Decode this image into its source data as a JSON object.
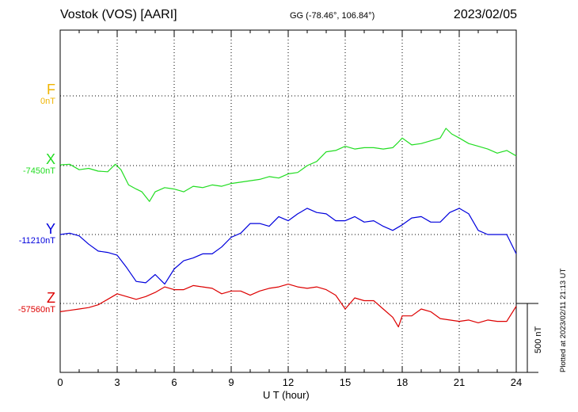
{
  "header": {
    "station": "Vostok (VOS)  [AARI]",
    "coords": "GG (-78.46°, 106.84°)",
    "date": "2023/02/05"
  },
  "plotted_note": "Plotted at 2023/02/11 21:13 UT",
  "chart_data": {
    "type": "line",
    "xlabel": "U T (hour)",
    "xlim": [
      0,
      24
    ],
    "xticks": [
      "0",
      "3",
      "6",
      "9",
      "12",
      "15",
      "18",
      "21",
      "24"
    ],
    "scale_bar": "500 nT",
    "grid": true,
    "series": [
      {
        "name": "F",
        "baseline_label": "0nT",
        "color": "#f0b400",
        "x": [],
        "values": []
      },
      {
        "name": "X",
        "baseline_label": "-7450nT",
        "color": "#22dd22",
        "x": [
          0,
          0.5,
          1,
          1.5,
          2,
          2.5,
          2.9,
          3.2,
          3.6,
          4,
          4.3,
          4.7,
          5,
          5.5,
          6,
          6.5,
          7,
          7.5,
          8,
          8.5,
          9,
          9.5,
          10,
          10.5,
          11,
          11.5,
          12,
          12.5,
          13,
          13.5,
          14,
          14.5,
          15,
          15.5,
          16,
          16.5,
          17,
          17.5,
          17.8,
          18,
          18.5,
          19,
          19.5,
          20,
          20.3,
          20.6,
          21,
          21.5,
          22,
          22.5,
          23,
          23.5,
          24
        ],
        "values": [
          -7445,
          -7440,
          -7480,
          -7470,
          -7490,
          -7495,
          -7440,
          -7480,
          -7590,
          -7620,
          -7640,
          -7710,
          -7640,
          -7610,
          -7620,
          -7640,
          -7600,
          -7610,
          -7590,
          -7600,
          -7580,
          -7570,
          -7560,
          -7550,
          -7530,
          -7540,
          -7510,
          -7500,
          -7450,
          -7420,
          -7350,
          -7340,
          -7310,
          -7330,
          -7320,
          -7320,
          -7330,
          -7320,
          -7280,
          -7250,
          -7300,
          -7290,
          -7270,
          -7250,
          -7180,
          -7220,
          -7250,
          -7290,
          -7310,
          -7330,
          -7360,
          -7340,
          -7380
        ]
      },
      {
        "name": "Y",
        "baseline_label": "-11210nT",
        "color": "#0000dd",
        "x": [
          0,
          0.5,
          1,
          1.5,
          2,
          2.5,
          3,
          3.5,
          4,
          4.5,
          5,
          5.5,
          6,
          6.5,
          7,
          7.5,
          8,
          8.5,
          9,
          9.5,
          10,
          10.5,
          11,
          11.5,
          12,
          12.5,
          13,
          13.5,
          14,
          14.5,
          15,
          15.5,
          16,
          16.5,
          17,
          17.5,
          18,
          18.5,
          19,
          19.5,
          20,
          20.5,
          21,
          21.5,
          22,
          22.5,
          23,
          23.5,
          24
        ],
        "values": [
          -11210,
          -11200,
          -11220,
          -11280,
          -11330,
          -11340,
          -11360,
          -11450,
          -11550,
          -11560,
          -11500,
          -11570,
          -11460,
          -11400,
          -11380,
          -11350,
          -11350,
          -11300,
          -11230,
          -11200,
          -11130,
          -11130,
          -11150,
          -11080,
          -11110,
          -11060,
          -11020,
          -11050,
          -11060,
          -11110,
          -11110,
          -11080,
          -11120,
          -11110,
          -11150,
          -11180,
          -11140,
          -11090,
          -11080,
          -11120,
          -11120,
          -11050,
          -11020,
          -11060,
          -11180,
          -11210,
          -11210,
          -11210,
          -11350
        ]
      },
      {
        "name": "Z",
        "baseline_label": "-57560nT",
        "color": "#dd0000",
        "x": [
          0,
          0.5,
          1,
          1.5,
          2,
          2.5,
          3,
          3.5,
          4,
          4.5,
          5,
          5.5,
          6,
          6.5,
          7,
          7.5,
          8,
          8.5,
          9,
          9.5,
          10,
          10.5,
          11,
          11.5,
          12,
          12.5,
          13,
          13.5,
          14,
          14.5,
          15,
          15.5,
          16,
          16.5,
          17,
          17.5,
          17.8,
          18,
          18.5,
          19,
          19.5,
          20,
          20.5,
          21,
          21.5,
          22,
          22.5,
          23,
          23.5,
          24
        ],
        "values": [
          -57620,
          -57610,
          -57600,
          -57590,
          -57570,
          -57530,
          -57490,
          -57510,
          -57530,
          -57510,
          -57480,
          -57440,
          -57460,
          -57460,
          -57430,
          -57440,
          -57450,
          -57490,
          -57470,
          -57470,
          -57500,
          -57470,
          -57450,
          -57440,
          -57420,
          -57440,
          -57450,
          -57440,
          -57460,
          -57500,
          -57600,
          -57520,
          -57540,
          -57540,
          -57600,
          -57660,
          -57730,
          -57650,
          -57650,
          -57600,
          -57620,
          -57670,
          -57680,
          -57690,
          -57680,
          -57700,
          -57680,
          -57690,
          -57690,
          -57580
        ]
      }
    ]
  }
}
